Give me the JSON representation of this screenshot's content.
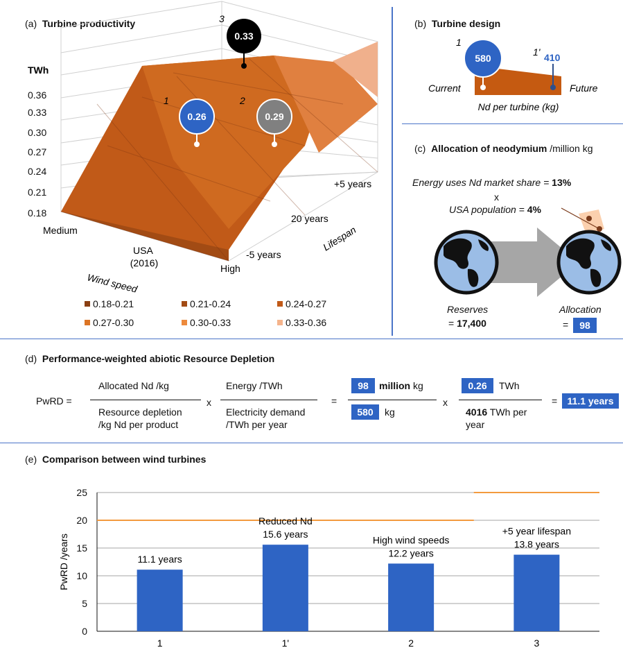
{
  "panel_a": {
    "tag": "(a)",
    "title": "Turbine productivity",
    "z_unit": "TWh",
    "z_ticks": [
      "0.36",
      "0.33",
      "0.30",
      "0.27",
      "0.24",
      "0.21",
      "0.18"
    ],
    "wind_ticks": [
      "Medium",
      "USA (2016)",
      "High"
    ],
    "wind_label": "Wind speed",
    "life_ticks": [
      "+5 years",
      "20 years",
      "-5 years"
    ],
    "life_label": "Lifespan",
    "points": [
      {
        "id": "1",
        "value": "0.26",
        "color": "#2e64c4"
      },
      {
        "id": "2",
        "value": "0.29",
        "color": "#808080"
      },
      {
        "id": "3",
        "value": "0.33",
        "color": "#000000"
      }
    ],
    "legend": [
      {
        "label": "0.18-0.21",
        "color": "#8a3f12"
      },
      {
        "label": "0.21-0.24",
        "color": "#a24b14"
      },
      {
        "label": "0.24-0.27",
        "color": "#c15a18"
      },
      {
        "label": "0.27-0.30",
        "color": "#dc7424"
      },
      {
        "label": "0.30-0.33",
        "color": "#ed8a3c"
      },
      {
        "label": "0.33-0.36",
        "color": "#f5b48c"
      }
    ]
  },
  "panel_b": {
    "tag": "(b)",
    "title": "Turbine design",
    "current_label": "Current",
    "future_label": "Future",
    "axis_label": "Nd per turbine (kg)",
    "current": {
      "id": "1",
      "value": "580"
    },
    "future": {
      "id": "1'",
      "value": "410"
    }
  },
  "panel_c": {
    "tag": "(c)",
    "title": "Allocation of neodymium",
    "unit": "/million kg",
    "share_label": "Energy uses Nd market share = ",
    "share_value": "13%",
    "times": "x",
    "pop_label": "USA population = ",
    "pop_value": "4%",
    "reserves_label": "Reserves",
    "reserves_eq": "= ",
    "reserves_value": "17,400",
    "allocation_label": "Allocation",
    "allocation_eq": "=",
    "allocation_value": "98"
  },
  "panel_d": {
    "tag": "(d)",
    "title": "Performance-weighted abiotic Resource Depletion",
    "lhs": "PwRD =",
    "f1_num": "Allocated Nd /kg",
    "f1_den1": "Resource depletion",
    "f1_den2": "/kg Nd per product",
    "times": "x",
    "f2_num": "Energy /TWh",
    "f2_den1": "Electricity demand",
    "f2_den2": "/TWh per year",
    "eq": "=",
    "n1_value": "98",
    "n1_unit_bold": "million",
    "n1_unit": "kg",
    "d1_value": "580",
    "d1_unit": "kg",
    "n2_value": "0.26",
    "n2_unit": "TWh",
    "d2_value": "4016",
    "d2_unit1": "TWh per",
    "d2_unit2": "year",
    "result_eq": "=",
    "result": "11.1 years"
  },
  "panel_e": {
    "tag": "(e)",
    "title": "Comparison between wind turbines"
  },
  "chart_data": {
    "type": "bar",
    "title": "Comparison between wind turbines",
    "categories": [
      "1",
      "1'",
      "2",
      "3"
    ],
    "values": [
      11.1,
      15.6,
      12.2,
      13.8
    ],
    "bar_labels": [
      [
        "11.1 years"
      ],
      [
        "Reduced Nd",
        "15.6 years"
      ],
      [
        "High wind speeds",
        "12.2 years"
      ],
      [
        "+5 year lifespan",
        "13.8 years"
      ]
    ],
    "ylabel": "PwRD /years",
    "xlabel": "",
    "ylim": [
      0,
      25
    ],
    "yticks": [
      0,
      5,
      10,
      15,
      20,
      25
    ],
    "grid": true,
    "reference_lines": [
      {
        "value": 20,
        "from": "1",
        "to": "2",
        "color": "#f39a3e"
      },
      {
        "value": 25,
        "from": "3",
        "to": "3",
        "color": "#f39a3e"
      }
    ],
    "bar_color": "#2e64c4"
  }
}
